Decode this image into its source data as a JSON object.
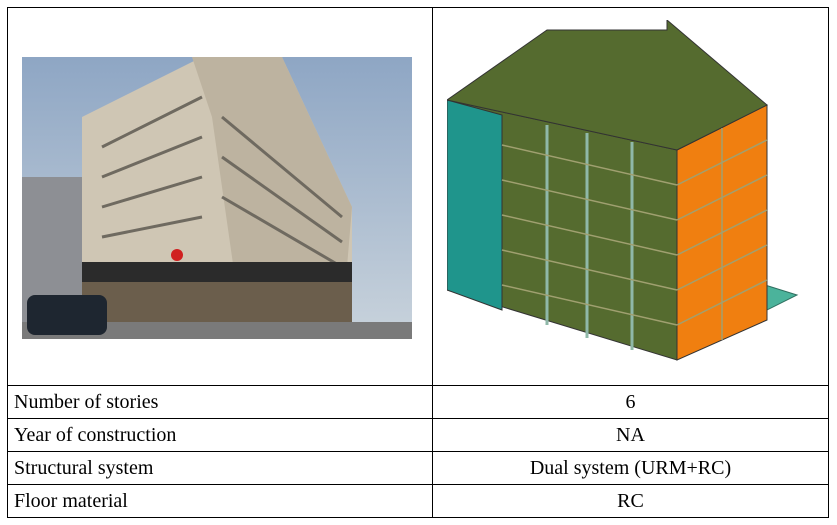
{
  "table": {
    "rows": [
      [
        "Number of stories",
        "6"
      ],
      [
        "Year of construction",
        "NA"
      ],
      [
        "Structural system",
        "Dual system (URM+RC)"
      ],
      [
        "Floor material",
        "RC"
      ]
    ]
  }
}
